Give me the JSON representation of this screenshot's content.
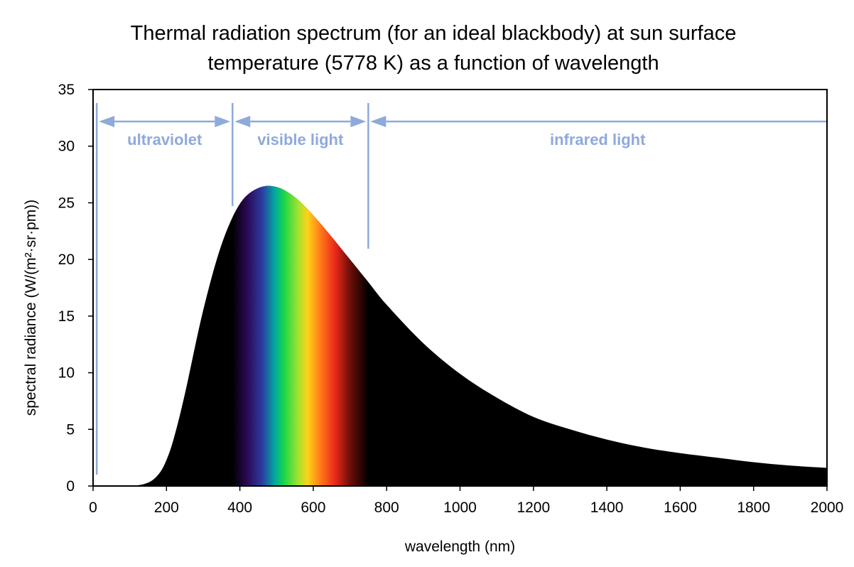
{
  "chart_data": {
    "type": "area",
    "title_lines": [
      "Thermal radiation spectrum (for an ideal blackbody) at sun surface",
      "temperature (5778 K) as a function of wavelength"
    ],
    "xlabel": "wavelength (nm)",
    "ylabel": "spectral radiance (W/(m²·sr·pm))",
    "xlim": [
      0,
      2000
    ],
    "ylim": [
      0,
      35
    ],
    "xticks": [
      0,
      200,
      400,
      600,
      800,
      1000,
      1200,
      1400,
      1600,
      1800,
      2000
    ],
    "yticks": [
      0,
      5,
      10,
      15,
      20,
      25,
      30,
      35
    ],
    "grid": false,
    "series": [
      {
        "x": [
          0,
          100,
          150,
          180,
          200,
          220,
          250,
          300,
          350,
          400,
          450,
          500,
          550,
          600,
          650,
          700,
          750,
          800,
          900,
          1000,
          1100,
          1200,
          1300,
          1400,
          1500,
          1600,
          1700,
          1800,
          1900,
          2000
        ],
        "values": [
          0,
          0.01,
          0.3,
          1.1,
          2.3,
          4.2,
          8.1,
          15.5,
          21.3,
          24.9,
          26.3,
          26.4,
          25.5,
          23.9,
          22.0,
          20.0,
          18.0,
          16.0,
          12.6,
          9.9,
          7.8,
          6.1,
          5.0,
          4.1,
          3.4,
          2.9,
          2.5,
          2.1,
          1.8,
          1.6
        ]
      }
    ],
    "bands": [
      {
        "label": "ultraviolet",
        "from": 10,
        "to": 380
      },
      {
        "label": "visible light",
        "from": 380,
        "to": 750
      },
      {
        "label": "infrared light",
        "from": 750,
        "to": 2000
      }
    ],
    "colors": {
      "area_fill": "#000000",
      "band_annotation": "#8eaadb",
      "axis": "#000000"
    },
    "visible_spectrum_gradient": [
      {
        "nm": 380,
        "color": "#000000"
      },
      {
        "nm": 420,
        "color": "#2a0a55"
      },
      {
        "nm": 460,
        "color": "#2d3aa0"
      },
      {
        "nm": 495,
        "color": "#00a8a0"
      },
      {
        "nm": 520,
        "color": "#18d64a"
      },
      {
        "nm": 560,
        "color": "#a6e22c"
      },
      {
        "nm": 585,
        "color": "#ffd21a"
      },
      {
        "nm": 620,
        "color": "#ff7a18"
      },
      {
        "nm": 660,
        "color": "#e9281a"
      },
      {
        "nm": 700,
        "color": "#6e0e08"
      },
      {
        "nm": 750,
        "color": "#000000"
      }
    ]
  }
}
